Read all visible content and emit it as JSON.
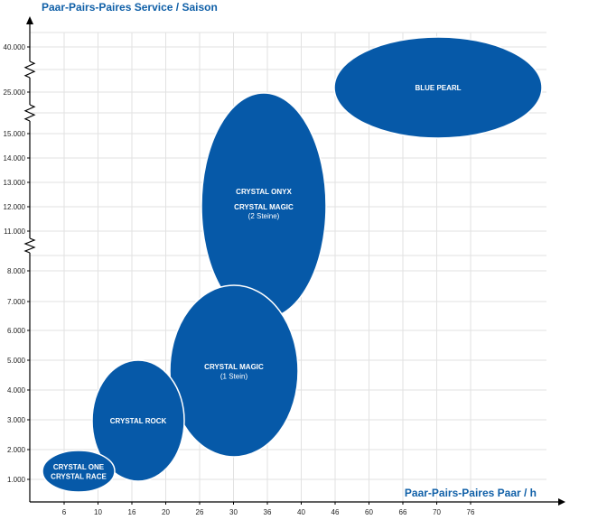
{
  "chart_data": {
    "type": "bubble-regions",
    "ylabel": "Paar-Pairs-Paires Service / Saison",
    "xlabel": "Paar-Pairs-Paires Paar / h",
    "x_ticks": [
      "6",
      "10",
      "16",
      "20",
      "26",
      "30",
      "36",
      "40",
      "46",
      "60",
      "66",
      "70",
      "76"
    ],
    "y_ticks": [
      "1.000",
      "2.000",
      "3.000",
      "4.000",
      "5.000",
      "6.000",
      "7.000",
      "8.000",
      "11.000",
      "12.000",
      "13.000",
      "14.000",
      "15.000",
      "25.000",
      "40.000"
    ],
    "y_axis_breaks": [
      "8.000-11.000",
      "15.000-25.000",
      "25.000-40.000"
    ],
    "grid": true,
    "colors": {
      "fill": "#0659a8",
      "stroke": "#ffffff",
      "axis_title": "#1060a8",
      "grid": "#e2e2e2"
    },
    "regions": [
      {
        "name": "crystal-onyx-magic-2",
        "lines": [
          "CRYSTAL ONYX",
          "CRYSTAL MAGIC",
          "(2 Steine)"
        ],
        "x_range": [
          26,
          36
        ],
        "y_range": [
          7000,
          25000
        ]
      },
      {
        "name": "blue-pearl",
        "lines": [
          "BLUE PEARL"
        ],
        "x_range": [
          46,
          76
        ],
        "y_range": [
          15000,
          40000
        ]
      },
      {
        "name": "crystal-magic-1",
        "lines": [
          "CRYSTAL MAGIC",
          "(1 Stein)"
        ],
        "x_range": [
          20,
          36
        ],
        "y_range": [
          2000,
          7500
        ]
      },
      {
        "name": "crystal-rock",
        "lines": [
          "CRYSTAL ROCK"
        ],
        "x_range": [
          10,
          20
        ],
        "y_range": [
          1000,
          5000
        ]
      },
      {
        "name": "crystal-one-race",
        "lines": [
          "CRYSTAL ONE",
          "CRYSTAL RACE"
        ],
        "x_range": [
          6,
          10
        ],
        "y_range": [
          500,
          1900
        ]
      }
    ]
  }
}
